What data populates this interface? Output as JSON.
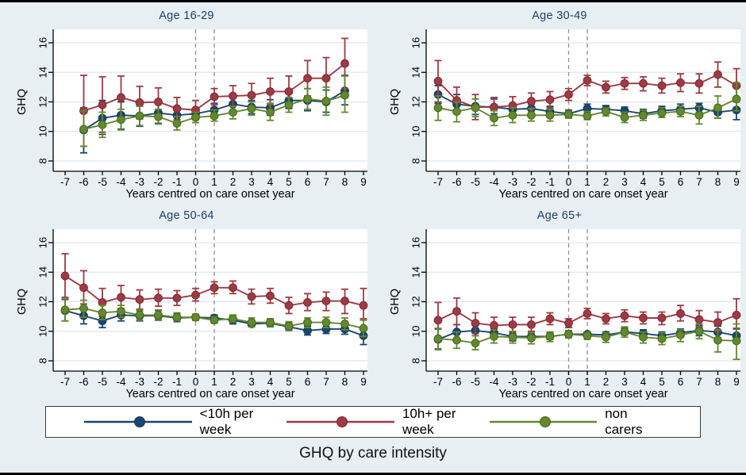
{
  "figure": {
    "title": "GHQ by care intensity"
  },
  "chart_data": {
    "type": "line",
    "title": "GHQ by care intensity",
    "xlabel": "Years centred on care onset year",
    "ylabel": "GHQ",
    "x_ticks": [
      -7,
      -6,
      -5,
      -4,
      -3,
      -2,
      -1,
      0,
      1,
      2,
      3,
      4,
      5,
      6,
      7,
      8,
      9
    ],
    "y_ticks": [
      8,
      10,
      12,
      14,
      16
    ],
    "ylim": [
      7.3,
      16.9
    ],
    "grid": "horizontal",
    "vlines": [
      0,
      1
    ],
    "legend_position": "bottom",
    "colors": {
      "background": "#e7eff2",
      "plot_background": "#ffffff",
      "gridline": "#dde8ee",
      "dashed_vline": "#8f8f8f",
      "axis": "#000000",
      "panel_title": "#1e3f66"
    },
    "legend": [
      {
        "label": "<10h per week",
        "color": "#1a476f",
        "edge": "#153a5c"
      },
      {
        "label": "10h+ per week",
        "color": "#9e3a44",
        "edge": "#7c2b33"
      },
      {
        "label": "non carers",
        "color": "#63892f",
        "edge": "#4a661f"
      }
    ],
    "panels": [
      {
        "title": "Age 16-29",
        "x": [
          -6,
          -5,
          -4,
          -3,
          -2,
          -1,
          0,
          1,
          2,
          3,
          4,
          5,
          6,
          7,
          8
        ],
        "series": [
          {
            "name": "<10h per week",
            "y": [
              10.1,
              10.9,
              11.1,
              11.05,
              11.25,
              11.1,
              11.2,
              11.45,
              11.85,
              11.65,
              11.6,
              12.1,
              12.1,
              12.0,
              12.75
            ],
            "lo": [
              8.55,
              9.8,
              10.15,
              10.35,
              10.55,
              10.6,
              10.9,
              11.0,
              11.4,
              11.2,
              11.1,
              11.55,
              11.4,
              11.3,
              11.8
            ],
            "hi": [
              11.6,
              12.1,
              12.0,
              11.75,
              11.9,
              11.65,
              11.5,
              11.9,
              12.3,
              12.1,
              12.15,
              12.7,
              12.9,
              12.8,
              13.8
            ]
          },
          {
            "name": "10h+ per week",
            "y": [
              11.4,
              11.8,
              12.3,
              11.95,
              12.0,
              11.55,
              11.45,
              12.35,
              12.4,
              12.45,
              12.7,
              12.7,
              13.6,
              13.6,
              14.6
            ],
            "lo": [
              9.0,
              9.95,
              10.9,
              10.85,
              11.05,
              10.8,
              10.8,
              11.8,
              11.7,
              11.7,
              11.8,
              11.65,
              12.4,
              12.2,
              12.9
            ],
            "hi": [
              13.8,
              13.7,
              13.75,
              13.05,
              12.95,
              12.3,
              12.1,
              12.9,
              13.1,
              13.25,
              13.6,
              13.75,
              14.8,
              15.0,
              16.3
            ]
          },
          {
            "name": "non carers",
            "y": [
              10.15,
              10.45,
              10.8,
              11.05,
              11.0,
              10.55,
              10.95,
              11.05,
              11.3,
              11.55,
              11.3,
              11.8,
              12.2,
              12.05,
              12.45
            ],
            "lo": [
              9.0,
              9.6,
              10.1,
              10.4,
              10.5,
              10.1,
              10.6,
              10.7,
              10.85,
              11.1,
              10.75,
              11.3,
              11.5,
              11.1,
              11.3
            ],
            "hi": [
              11.4,
              11.3,
              11.5,
              11.7,
              11.5,
              11.0,
              11.3,
              11.45,
              11.7,
              12.0,
              11.9,
              12.3,
              12.9,
              13.0,
              13.75
            ]
          }
        ]
      },
      {
        "title": "Age 30-49",
        "x": [
          -7,
          -6,
          -5,
          -4,
          -3,
          -2,
          -1,
          0,
          1,
          2,
          3,
          4,
          5,
          6,
          7,
          8,
          9
        ],
        "series": [
          {
            "name": "<10h per week",
            "y": [
              12.5,
              11.85,
              11.7,
              11.65,
              11.5,
              11.55,
              11.35,
              11.2,
              11.55,
              11.5,
              11.4,
              11.2,
              11.4,
              11.5,
              11.6,
              11.3,
              11.45
            ],
            "lo": [
              11.9,
              11.4,
              11.15,
              11.2,
              11.2,
              11.25,
              11.0,
              10.95,
              11.3,
              11.25,
              11.1,
              10.9,
              11.15,
              11.2,
              11.3,
              10.9,
              10.8
            ],
            "hi": [
              13.1,
              12.5,
              12.2,
              12.2,
              11.85,
              11.85,
              11.7,
              11.45,
              11.85,
              11.75,
              11.65,
              11.5,
              11.7,
              11.85,
              11.9,
              11.65,
              12.1
            ]
          },
          {
            "name": "10h+ per week",
            "y": [
              13.4,
              12.1,
              11.65,
              11.65,
              11.75,
              12.05,
              12.15,
              12.5,
              13.45,
              13.0,
              13.25,
              13.25,
              13.1,
              13.3,
              13.25,
              13.85,
              13.1
            ],
            "lo": [
              12.0,
              11.2,
              10.8,
              11.0,
              11.1,
              11.5,
              11.6,
              12.1,
              13.1,
              12.6,
              12.85,
              12.75,
              12.6,
              12.7,
              12.6,
              13.0,
              12.0
            ],
            "hi": [
              14.8,
              13.0,
              12.5,
              12.3,
              12.35,
              12.6,
              12.7,
              12.9,
              13.8,
              13.4,
              13.65,
              13.7,
              13.6,
              13.9,
              13.9,
              14.7,
              14.25
            ]
          },
          {
            "name": "non carers",
            "y": [
              11.6,
              11.35,
              11.6,
              10.9,
              11.1,
              11.1,
              11.1,
              11.15,
              11.05,
              11.35,
              10.95,
              11.1,
              11.25,
              11.35,
              11.1,
              11.6,
              12.2
            ],
            "lo": [
              10.75,
              10.65,
              11.0,
              10.4,
              10.6,
              10.7,
              10.7,
              10.9,
              10.8,
              11.05,
              10.6,
              10.75,
              10.95,
              11.0,
              10.5,
              10.9,
              11.4
            ],
            "hi": [
              12.4,
              12.0,
              12.2,
              11.4,
              11.6,
              11.55,
              11.5,
              11.4,
              11.35,
              11.6,
              11.3,
              11.45,
              11.6,
              11.7,
              11.7,
              12.4,
              13.3
            ]
          }
        ]
      },
      {
        "title": "Age 50-64",
        "x": [
          -7,
          -6,
          -5,
          -4,
          -3,
          -2,
          -1,
          0,
          1,
          2,
          3,
          4,
          5,
          6,
          7,
          8,
          9
        ],
        "series": [
          {
            "name": "<10h per week",
            "y": [
              11.4,
              11.05,
              10.7,
              11.1,
              11.05,
              11.05,
              10.9,
              10.95,
              10.9,
              10.75,
              10.5,
              10.55,
              10.3,
              10.05,
              10.15,
              10.15,
              9.7
            ],
            "lo": [
              10.7,
              10.5,
              10.25,
              10.7,
              10.7,
              10.75,
              10.65,
              10.75,
              10.65,
              10.5,
              10.3,
              10.3,
              10.05,
              9.75,
              9.85,
              9.8,
              9.1
            ],
            "hi": [
              12.15,
              11.6,
              11.15,
              11.5,
              11.4,
              11.4,
              11.2,
              11.15,
              11.1,
              11.0,
              10.75,
              10.8,
              10.55,
              10.35,
              10.45,
              10.5,
              10.25
            ]
          },
          {
            "name": "10h+ per week",
            "y": [
              13.75,
              12.95,
              11.95,
              12.3,
              12.15,
              12.25,
              12.25,
              12.45,
              12.95,
              12.95,
              12.35,
              12.4,
              11.75,
              11.95,
              12.05,
              12.05,
              11.75
            ],
            "lo": [
              12.3,
              11.85,
              11.0,
              11.55,
              11.5,
              11.7,
              11.75,
              12.05,
              12.55,
              12.55,
              11.85,
              11.9,
              11.2,
              11.4,
              11.4,
              11.2,
              10.85
            ],
            "hi": [
              15.25,
              14.1,
              12.9,
              13.1,
              12.8,
              12.85,
              12.75,
              12.9,
              13.35,
              13.4,
              12.85,
              12.9,
              12.3,
              12.55,
              12.65,
              12.85,
              12.9
            ]
          },
          {
            "name": "non carers",
            "y": [
              11.45,
              11.55,
              11.25,
              11.35,
              11.1,
              11.1,
              10.95,
              10.95,
              10.75,
              10.85,
              10.6,
              10.6,
              10.35,
              10.6,
              10.6,
              10.5,
              10.2
            ],
            "lo": [
              10.7,
              10.95,
              10.8,
              10.95,
              10.75,
              10.8,
              10.7,
              10.75,
              10.55,
              10.6,
              10.3,
              10.3,
              10.05,
              10.25,
              10.25,
              10.1,
              9.65
            ],
            "hi": [
              12.2,
              12.1,
              11.75,
              11.75,
              11.45,
              11.45,
              11.25,
              11.15,
              11.0,
              11.1,
              10.9,
              10.85,
              10.65,
              10.9,
              10.95,
              10.9,
              10.75
            ]
          }
        ]
      },
      {
        "title": "Age 65+",
        "x": [
          -7,
          -6,
          -5,
          -4,
          -3,
          -2,
          -1,
          0,
          1,
          2,
          3,
          4,
          5,
          6,
          7,
          8,
          9
        ],
        "series": [
          {
            "name": "<10h per week",
            "y": [
              9.45,
              9.95,
              10.05,
              9.9,
              9.65,
              9.65,
              9.65,
              9.8,
              9.8,
              9.75,
              9.95,
              9.85,
              9.7,
              9.9,
              10.05,
              9.95,
              9.7
            ],
            "lo": [
              8.8,
              9.5,
              9.7,
              9.6,
              9.35,
              9.4,
              9.45,
              9.65,
              9.6,
              9.55,
              9.75,
              9.6,
              9.45,
              9.6,
              9.7,
              9.55,
              9.2
            ],
            "hi": [
              10.15,
              10.45,
              10.4,
              10.2,
              9.9,
              9.9,
              9.9,
              9.95,
              9.95,
              9.95,
              10.2,
              10.1,
              9.95,
              10.15,
              10.4,
              10.35,
              10.2
            ]
          },
          {
            "name": "10h+ per week",
            "y": [
              10.75,
              11.35,
              10.55,
              10.4,
              10.45,
              10.45,
              10.85,
              10.55,
              11.2,
              10.85,
              11.05,
              10.9,
              10.9,
              11.2,
              10.8,
              10.6,
              11.1
            ],
            "lo": [
              9.55,
              10.45,
              9.85,
              9.85,
              9.95,
              10.0,
              10.45,
              10.25,
              10.85,
              10.5,
              10.65,
              10.5,
              10.45,
              10.7,
              10.3,
              10.0,
              10.15
            ],
            "hi": [
              11.95,
              12.25,
              11.25,
              10.95,
              10.95,
              10.95,
              11.25,
              10.85,
              11.55,
              11.2,
              11.45,
              11.3,
              11.3,
              11.75,
              11.4,
              11.3,
              12.2
            ]
          },
          {
            "name": "non carers",
            "y": [
              9.5,
              9.4,
              9.2,
              9.65,
              9.6,
              9.55,
              9.65,
              9.8,
              9.7,
              9.6,
              9.95,
              9.6,
              9.5,
              9.75,
              10.0,
              9.4,
              9.35
            ],
            "lo": [
              8.75,
              8.85,
              8.75,
              9.2,
              9.2,
              9.15,
              9.3,
              9.55,
              9.45,
              9.25,
              9.6,
              9.2,
              9.1,
              9.3,
              9.5,
              8.6,
              8.1
            ],
            "hi": [
              10.2,
              9.95,
              9.7,
              10.1,
              10.0,
              9.9,
              9.95,
              10.05,
              9.95,
              9.9,
              10.3,
              9.95,
              9.9,
              10.1,
              10.5,
              10.1,
              10.5
            ]
          }
        ]
      }
    ]
  }
}
